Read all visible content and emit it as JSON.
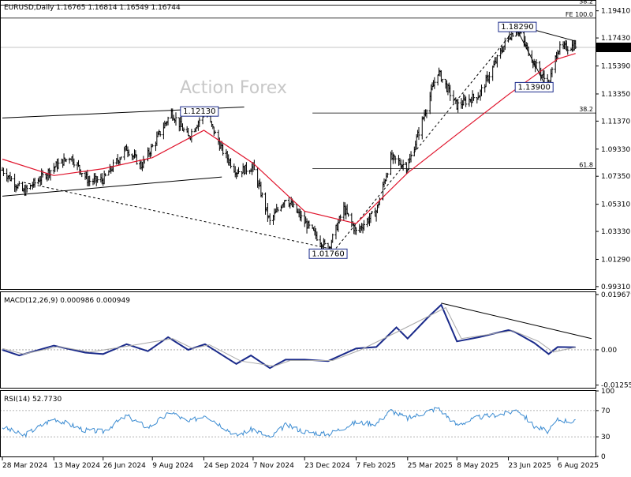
{
  "chart_data": [
    {
      "type": "ohlc",
      "header": "EURUSD,Daily  1.16765 1.16814 1.16549 1.16744",
      "symbol": "EURUSD",
      "timeframe": "Daily",
      "ohlc_last": {
        "open": 1.16765,
        "high": 1.16814,
        "low": 1.16549,
        "close": 1.16744
      },
      "current_price_label": "1.16744",
      "ylim": [
        0.9913,
        1.2014
      ],
      "y_ticks": [
        "1.19410",
        "1.17430",
        "1.15390",
        "1.13350",
        "1.11370",
        "1.09330",
        "1.07350",
        "1.05310",
        "1.03330",
        "1.01290",
        "0.99310"
      ],
      "x_ticks": [
        "28 Mar 2024",
        "13 May 2024",
        "26 Jun 2024",
        "9 Aug 2024",
        "24 Sep 2024",
        "7 Nov 2024",
        "23 Dec 2024",
        "7 Feb 2025",
        "25 Mar 2025",
        "8 May 2025",
        "23 Jun 2025",
        "6 Aug 2025"
      ],
      "watermark": "Action Forex",
      "price_path": [
        [
          "2024-03-28",
          1.078
        ],
        [
          "2024-04-16",
          1.062
        ],
        [
          "2024-05-13",
          1.08
        ],
        [
          "2024-05-28",
          1.088
        ],
        [
          "2024-06-13",
          1.07
        ],
        [
          "2024-06-26",
          1.071
        ],
        [
          "2024-07-17",
          1.094
        ],
        [
          "2024-07-30",
          1.081
        ],
        [
          "2024-08-09",
          1.095
        ],
        [
          "2024-08-26",
          1.12
        ],
        [
          "2024-09-10",
          1.102
        ],
        [
          "2024-09-25",
          1.121
        ],
        [
          "2024-10-10",
          1.093
        ],
        [
          "2024-10-23",
          1.077
        ],
        [
          "2024-11-07",
          1.08
        ],
        [
          "2024-11-22",
          1.04
        ],
        [
          "2024-12-06",
          1.058
        ],
        [
          "2024-12-23",
          1.04
        ],
        [
          "2025-01-13",
          1.02
        ],
        [
          "2025-01-27",
          1.05
        ],
        [
          "2025-02-07",
          1.033
        ],
        [
          "2025-02-25",
          1.048
        ],
        [
          "2025-03-10",
          1.087
        ],
        [
          "2025-03-25",
          1.08
        ],
        [
          "2025-04-21",
          1.15
        ],
        [
          "2025-05-08",
          1.125
        ],
        [
          "2025-05-28",
          1.133
        ],
        [
          "2025-06-23",
          1.175
        ],
        [
          "2025-07-01",
          1.181
        ],
        [
          "2025-07-16",
          1.156
        ],
        [
          "2025-07-29",
          1.14
        ],
        [
          "2025-08-06",
          1.166
        ],
        [
          "2025-08-22",
          1.169
        ]
      ],
      "moving_average": [
        [
          "2024-03-28",
          1.086
        ],
        [
          "2024-05-13",
          1.074
        ],
        [
          "2024-06-26",
          1.079
        ],
        [
          "2024-08-09",
          1.087
        ],
        [
          "2024-09-24",
          1.107
        ],
        [
          "2024-11-07",
          1.083
        ],
        [
          "2024-12-23",
          1.048
        ],
        [
          "2025-02-07",
          1.039
        ],
        [
          "2025-03-25",
          1.076
        ],
        [
          "2025-05-08",
          1.104
        ],
        [
          "2025-06-23",
          1.133
        ],
        [
          "2025-08-06",
          1.159
        ],
        [
          "2025-08-22",
          1.163
        ]
      ],
      "annotations": [
        {
          "text": "1.12130",
          "date": "2024-09-20",
          "price": 1.1213
        },
        {
          "text": "1.01760",
          "date": "2025-01-13",
          "price": 1.0176
        },
        {
          "text": "1.18290",
          "date": "2025-07-01",
          "price": 1.1829
        },
        {
          "text": "1.13900",
          "date": "2025-07-16",
          "price": 1.139
        }
      ],
      "fib_levels": [
        {
          "label": "38.2",
          "price": 1.1982
        },
        {
          "label": "FE 100.0",
          "price": 1.1888
        },
        {
          "label": "38.2",
          "price": 1.1196
        },
        {
          "label": "61.8",
          "price": 1.079
        }
      ],
      "trendlines": [
        {
          "from": [
            "2024-03-28",
            1.116
          ],
          "to": [
            "2024-10-30",
            1.124
          ]
        },
        {
          "from": [
            "2024-03-28",
            1.059
          ],
          "to": [
            "2024-10-10",
            1.073
          ]
        },
        {
          "from": [
            "2024-04-16",
            1.069
          ],
          "to": [
            "2025-01-13",
            1.021
          ],
          "dashed": true
        },
        {
          "from": [
            "2025-01-20",
            1.021
          ],
          "to": [
            "2025-07-01",
            1.1829
          ],
          "dashed": true
        },
        {
          "from": [
            "2025-07-01",
            1.1835
          ],
          "to": [
            "2025-08-22",
            1.172
          ]
        },
        {
          "from": [
            "2025-07-01",
            1.18
          ],
          "to": [
            "2025-07-29",
            1.135
          ]
        }
      ]
    },
    {
      "type": "line",
      "header": "MACD(12,26,9) 0.000986 0.000949",
      "indicator": "MACD(12,26,9)",
      "values_label": "0.000986 0.000949",
      "ylim": [
        -0.0135,
        0.0205
      ],
      "y_ticks": [
        "0.019679",
        "0.00",
        "-0.012552"
      ],
      "current_label": "0.00",
      "series": [
        {
          "name": "MACD",
          "color": "#1a2a8a",
          "points": [
            [
              "2024-03-28",
              0.0
            ],
            [
              "2024-04-12",
              -0.002
            ],
            [
              "2024-05-13",
              0.0015
            ],
            [
              "2024-06-10",
              -0.001
            ],
            [
              "2024-06-26",
              -0.0015
            ],
            [
              "2024-07-17",
              0.002
            ],
            [
              "2024-08-05",
              -0.0005
            ],
            [
              "2024-08-23",
              0.0045
            ],
            [
              "2024-09-10",
              0.0
            ],
            [
              "2024-09-25",
              0.002
            ],
            [
              "2024-10-23",
              -0.005
            ],
            [
              "2024-11-05",
              -0.002
            ],
            [
              "2024-11-22",
              -0.0065
            ],
            [
              "2024-12-06",
              -0.0035
            ],
            [
              "2024-12-23",
              -0.0035
            ],
            [
              "2025-01-13",
              -0.004
            ],
            [
              "2025-02-07",
              0.0005
            ],
            [
              "2025-02-25",
              0.001
            ],
            [
              "2025-03-15",
              0.008
            ],
            [
              "2025-03-25",
              0.004
            ],
            [
              "2025-04-12",
              0.0115
            ],
            [
              "2025-04-24",
              0.016
            ],
            [
              "2025-05-08",
              0.003
            ],
            [
              "2025-05-28",
              0.0045
            ],
            [
              "2025-06-23",
              0.007
            ],
            [
              "2025-06-28",
              0.0065
            ],
            [
              "2025-07-16",
              0.0025
            ],
            [
              "2025-07-29",
              -0.0015
            ],
            [
              "2025-08-06",
              0.001
            ],
            [
              "2025-08-22",
              0.0009
            ]
          ]
        },
        {
          "name": "Signal",
          "color": "#a8a8a8",
          "points": [
            [
              "2024-03-28",
              0.0005
            ],
            [
              "2024-04-16",
              -0.0015
            ],
            [
              "2024-05-17",
              0.0012
            ],
            [
              "2024-06-14",
              -0.0008
            ],
            [
              "2024-07-21",
              0.0015
            ],
            [
              "2024-08-27",
              0.004
            ],
            [
              "2024-09-14",
              0.0005
            ],
            [
              "2024-09-29",
              0.0018
            ],
            [
              "2024-10-27",
              -0.004
            ],
            [
              "2024-11-26",
              -0.0058
            ],
            [
              "2024-12-10",
              -0.0038
            ],
            [
              "2025-01-17",
              -0.0038
            ],
            [
              "2025-02-11",
              0.0
            ],
            [
              "2025-03-19",
              0.007
            ],
            [
              "2025-04-28",
              0.015
            ],
            [
              "2025-05-12",
              0.004
            ],
            [
              "2025-06-27",
              0.0068
            ],
            [
              "2025-07-20",
              0.003
            ],
            [
              "2025-08-02",
              -0.0008
            ],
            [
              "2025-08-22",
              0.0009
            ]
          ]
        }
      ],
      "trendlines": [
        {
          "from": [
            "2025-04-24",
            0.0166
          ],
          "to": [
            "2025-08-22",
            0.004
          ]
        }
      ],
      "zero_line": true
    },
    {
      "type": "line",
      "header": "RSI(14) 52.7730",
      "indicator": "RSI(14)",
      "values_label": "52.7730",
      "ylim": [
        0,
        100
      ],
      "y_ticks": [
        "100",
        "70",
        "30",
        "0"
      ],
      "levels": [
        70,
        30
      ],
      "series": [
        {
          "name": "RSI",
          "color": "#3c8cd2",
          "points": [
            [
              "2024-03-28",
              45
            ],
            [
              "2024-04-16",
              32
            ],
            [
              "2024-05-13",
              58
            ],
            [
              "2024-06-10",
              40
            ],
            [
              "2024-06-26",
              38
            ],
            [
              "2024-07-17",
              62
            ],
            [
              "2024-08-05",
              44
            ],
            [
              "2024-08-26",
              68
            ],
            [
              "2024-09-10",
              52
            ],
            [
              "2024-09-25",
              64
            ],
            [
              "2024-10-23",
              32
            ],
            [
              "2024-11-07",
              42
            ],
            [
              "2024-11-22",
              28
            ],
            [
              "2024-12-06",
              48
            ],
            [
              "2024-12-23",
              38
            ],
            [
              "2025-01-13",
              34
            ],
            [
              "2025-02-07",
              52
            ],
            [
              "2025-02-25",
              50
            ],
            [
              "2025-03-10",
              70
            ],
            [
              "2025-03-25",
              58
            ],
            [
              "2025-04-21",
              74
            ],
            [
              "2025-05-08",
              48
            ],
            [
              "2025-05-28",
              60
            ],
            [
              "2025-06-23",
              66
            ],
            [
              "2025-07-01",
              72
            ],
            [
              "2025-07-16",
              46
            ],
            [
              "2025-07-29",
              38
            ],
            [
              "2025-08-06",
              56
            ],
            [
              "2025-08-22",
              53
            ]
          ]
        }
      ]
    }
  ]
}
